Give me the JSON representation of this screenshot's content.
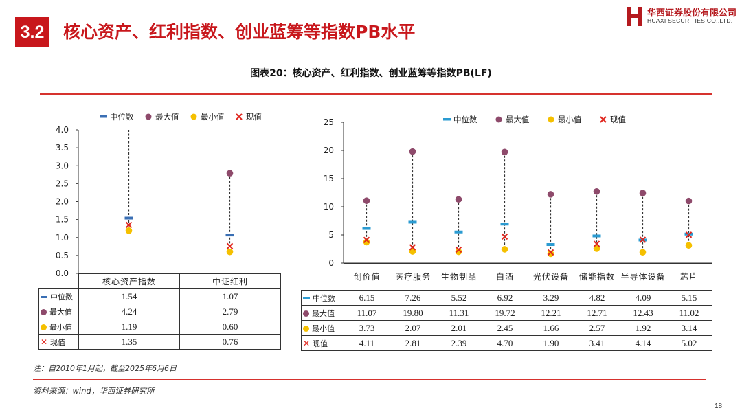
{
  "header": {
    "section_number": "3.2",
    "section_title": "核心资产、红利指数、创业蓝筹等指数PB水平",
    "logo_cn": "华西证券股份有限公司",
    "logo_en": "HUAXI SECURITIES CO.,LTD."
  },
  "figure_title": "图表20：核心资产、红利指数、创业蓝筹等指数PB(LF)",
  "legend": [
    "中位数",
    "最大值",
    "最小值",
    "现值"
  ],
  "chart_data": [
    {
      "type": "scatter",
      "categories": [
        "核心资产指数",
        "中证红利"
      ],
      "series": [
        {
          "name": "中位数",
          "values": [
            1.54,
            1.07
          ]
        },
        {
          "name": "最大值",
          "values": [
            4.24,
            2.79
          ]
        },
        {
          "name": "最小值",
          "values": [
            1.19,
            0.6
          ]
        },
        {
          "name": "现值",
          "values": [
            1.35,
            0.76
          ]
        }
      ],
      "ylim": [
        0,
        4.0
      ],
      "yticks": [
        "0.0",
        "0.5",
        "1.0",
        "1.5",
        "2.0",
        "2.5",
        "3.0",
        "3.5",
        "4.0"
      ],
      "table": [
        [
          "1.54",
          "1.07"
        ],
        [
          "4.24",
          "2.79"
        ],
        [
          "1.19",
          "0.60"
        ],
        [
          "1.35",
          "0.76"
        ]
      ]
    },
    {
      "type": "scatter",
      "categories": [
        "创价值",
        "医疗服务",
        "生物制品",
        "白酒",
        "光伏设备",
        "储能指数",
        "半导体设备",
        "芯片"
      ],
      "series": [
        {
          "name": "中位数",
          "values": [
            6.15,
            7.26,
            5.52,
            6.92,
            3.29,
            4.82,
            4.09,
            5.15
          ]
        },
        {
          "name": "最大值",
          "values": [
            11.07,
            19.8,
            11.31,
            19.72,
            12.21,
            12.71,
            12.43,
            11.02
          ]
        },
        {
          "name": "最小值",
          "values": [
            3.73,
            2.07,
            2.01,
            2.45,
            1.66,
            2.57,
            1.92,
            3.14
          ]
        },
        {
          "name": "现值",
          "values": [
            4.11,
            2.81,
            2.39,
            4.7,
            1.9,
            3.41,
            4.14,
            5.02
          ]
        }
      ],
      "ylim": [
        0,
        25
      ],
      "yticks": [
        "0",
        "5",
        "10",
        "15",
        "20",
        "25"
      ],
      "table": [
        [
          "6.15",
          "7.26",
          "5.52",
          "6.92",
          "3.29",
          "4.82",
          "4.09",
          "5.15"
        ],
        [
          "11.07",
          "19.80",
          "11.31",
          "19.72",
          "12.21",
          "12.71",
          "12.43",
          "11.02"
        ],
        [
          "3.73",
          "2.07",
          "2.01",
          "2.45",
          "1.66",
          "2.57",
          "1.92",
          "3.14"
        ],
        [
          "4.11",
          "2.81",
          "2.39",
          "4.70",
          "1.90",
          "3.41",
          "4.14",
          "5.02"
        ]
      ]
    }
  ],
  "colors": {
    "median": "#3a6fb4",
    "median_right": "#2b9bd1",
    "max": "#8e4a6b",
    "min": "#f5c000",
    "current": "#e0261e",
    "accent": "#c8171c"
  },
  "note": "注：自2010年1月起，截至2025年6月6日",
  "source": "资料来源：wind，华西证券研究所",
  "page_number": "18"
}
